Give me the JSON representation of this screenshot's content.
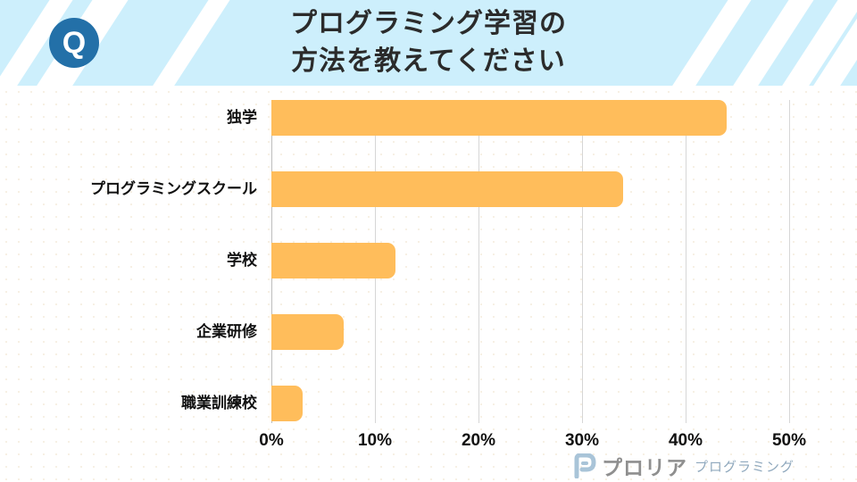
{
  "header": {
    "badge_letter": "Q",
    "title_line1": "プログラミング学習の",
    "title_line2": "方法を教えてください"
  },
  "colors": {
    "header_bg": "#cdeffc",
    "badge_bg": "#2370a8",
    "bar": "#ffbd5b",
    "title_text": "#2b2b2b"
  },
  "chart_data": {
    "type": "bar",
    "orientation": "horizontal",
    "title": "プログラミング学習の方法を教えてください",
    "categories": [
      "独学",
      "プログラミングスクール",
      "学校",
      "企業研修",
      "職業訓練校"
    ],
    "values": [
      44,
      34,
      12,
      7,
      3
    ],
    "unit": "%",
    "xlabel": "",
    "ylabel": "",
    "xlim": [
      0,
      50
    ],
    "x_ticks": [
      "0%",
      "10%",
      "20%",
      "30%",
      "40%",
      "50%"
    ],
    "grid": "vertical",
    "legend": "none"
  },
  "labels": {
    "y": [
      "独学",
      "プログラミングスクール",
      "学校",
      "企業研修",
      "職業訓練校"
    ],
    "x": [
      "0%",
      "10%",
      "20%",
      "30%",
      "40%",
      "50%"
    ]
  },
  "footer": {
    "brand_icon": "P-logo-icon",
    "brand_name": "プロリア",
    "brand_sub": "プログラミング"
  }
}
